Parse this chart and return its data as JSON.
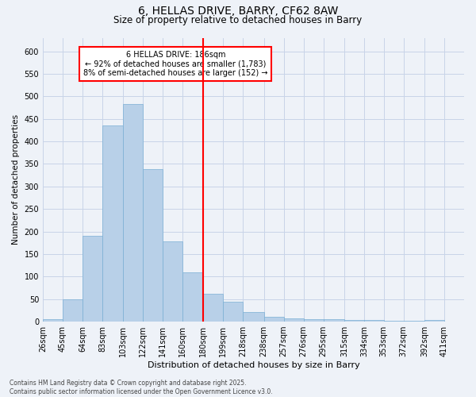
{
  "title_line1": "6, HELLAS DRIVE, BARRY, CF62 8AW",
  "title_line2": "Size of property relative to detached houses in Barry",
  "xlabel": "Distribution of detached houses by size in Barry",
  "ylabel": "Number of detached properties",
  "footnote": "Contains HM Land Registry data © Crown copyright and database right 2025.\nContains public sector information licensed under the Open Government Licence v3.0.",
  "bin_labels": [
    "26sqm",
    "45sqm",
    "64sqm",
    "83sqm",
    "103sqm",
    "122sqm",
    "141sqm",
    "160sqm",
    "180sqm",
    "199sqm",
    "218sqm",
    "238sqm",
    "257sqm",
    "276sqm",
    "295sqm",
    "315sqm",
    "334sqm",
    "353sqm",
    "372sqm",
    "392sqm",
    "411sqm"
  ],
  "bin_edges": [
    26,
    45,
    64,
    83,
    103,
    122,
    141,
    160,
    180,
    199,
    218,
    238,
    257,
    276,
    295,
    315,
    334,
    353,
    372,
    392,
    411
  ],
  "bar_values": [
    5,
    50,
    190,
    435,
    483,
    338,
    178,
    110,
    62,
    45,
    22,
    11,
    8,
    6,
    5,
    4,
    3,
    2,
    2,
    3
  ],
  "bar_color": "#b8d0e8",
  "bar_edge_color": "#7aafd4",
  "grid_color": "#c8d4e8",
  "vline_x": 180,
  "vline_color": "red",
  "annotation_text": "6 HELLAS DRIVE: 186sqm\n← 92% of detached houses are smaller (1,783)\n8% of semi-detached houses are larger (152) →",
  "annotation_box_color": "white",
  "annotation_box_edge_color": "red",
  "ylim": [
    0,
    630
  ],
  "yticks": [
    0,
    50,
    100,
    150,
    200,
    250,
    300,
    350,
    400,
    450,
    500,
    550,
    600
  ],
  "background_color": "#eef2f8",
  "title_fontsize": 10,
  "subtitle_fontsize": 8.5,
  "xlabel_fontsize": 8,
  "ylabel_fontsize": 7.5,
  "tick_fontsize": 7,
  "annotation_fontsize": 7,
  "footnote_fontsize": 5.5
}
